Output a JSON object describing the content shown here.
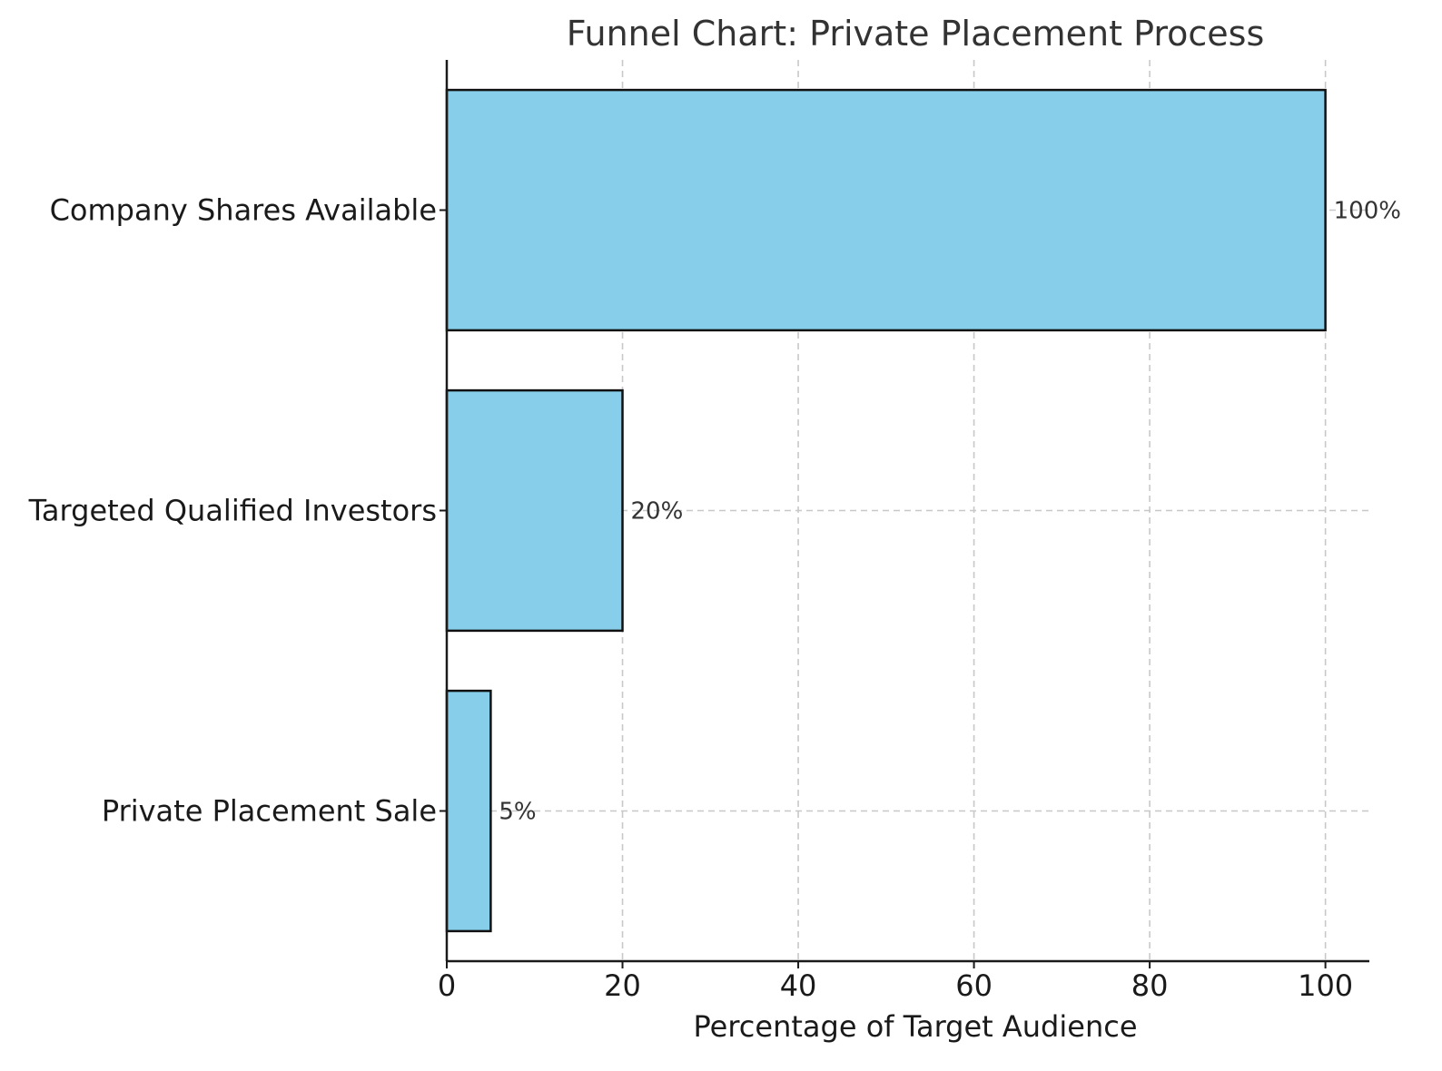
{
  "chart_data": {
    "type": "bar",
    "orientation": "horizontal",
    "title": "Funnel Chart: Private Placement Process",
    "xlabel": "Percentage of Target Audience",
    "ylabel": "",
    "categories": [
      "Company Shares Available",
      "Targeted Qualified Investors",
      "Private Placement Sale"
    ],
    "values": [
      100,
      20,
      5
    ],
    "data_labels": [
      "100%",
      "20%",
      "5%"
    ],
    "xlim": [
      0,
      105
    ],
    "xticks": [
      0,
      20,
      40,
      60,
      80,
      100
    ],
    "xtick_labels": [
      "0",
      "20",
      "40",
      "60",
      "80",
      "100"
    ],
    "grid": true,
    "bar_color": "#87CEEB",
    "edge_color": "#111111"
  }
}
